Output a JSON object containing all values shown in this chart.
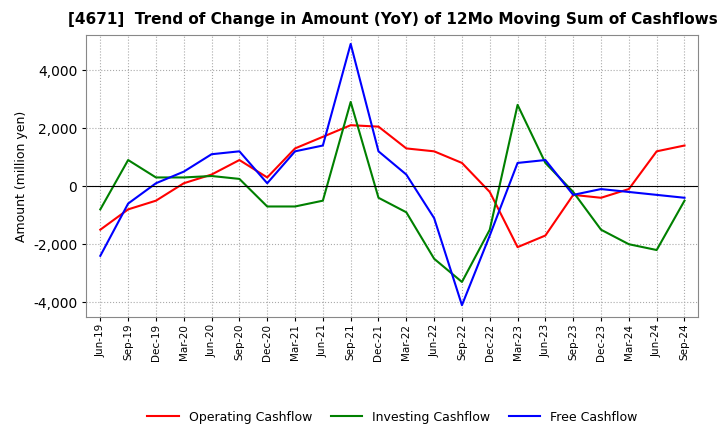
{
  "title": "[4671]  Trend of Change in Amount (YoY) of 12Mo Moving Sum of Cashflows",
  "ylabel": "Amount (million yen)",
  "ylim": [
    -4500,
    5200
  ],
  "yticks": [
    -4000,
    -2000,
    0,
    2000,
    4000
  ],
  "x_labels": [
    "Jun-19",
    "Sep-19",
    "Dec-19",
    "Mar-20",
    "Jun-20",
    "Sep-20",
    "Dec-20",
    "Mar-21",
    "Jun-21",
    "Sep-21",
    "Dec-21",
    "Mar-22",
    "Jun-22",
    "Sep-22",
    "Dec-22",
    "Mar-23",
    "Jun-23",
    "Sep-23",
    "Dec-23",
    "Mar-24",
    "Jun-24",
    "Sep-24"
  ],
  "operating_cashflow": [
    -1500,
    -800,
    -500,
    100,
    400,
    900,
    300,
    1300,
    1700,
    2100,
    2050,
    1300,
    1200,
    800,
    -200,
    -2100,
    -1700,
    -300,
    -400,
    -100,
    1200,
    1400
  ],
  "investing_cashflow": [
    -800,
    900,
    300,
    300,
    350,
    250,
    -700,
    -700,
    -500,
    2900,
    -400,
    -900,
    -2500,
    -3300,
    -1500,
    2800,
    800,
    -200,
    -1500,
    -2000,
    -2200,
    -500
  ],
  "free_cashflow": [
    -2400,
    -600,
    100,
    500,
    1100,
    1200,
    100,
    1200,
    1400,
    4900,
    1200,
    400,
    -1100,
    -4100,
    -1700,
    800,
    900,
    -300,
    -100,
    -200,
    -300,
    -400
  ],
  "operating_color": "#ff0000",
  "investing_color": "#008000",
  "free_color": "#0000ff",
  "grid_color": "#aaaaaa",
  "background_color": "#ffffff",
  "spine_color": "#888888"
}
